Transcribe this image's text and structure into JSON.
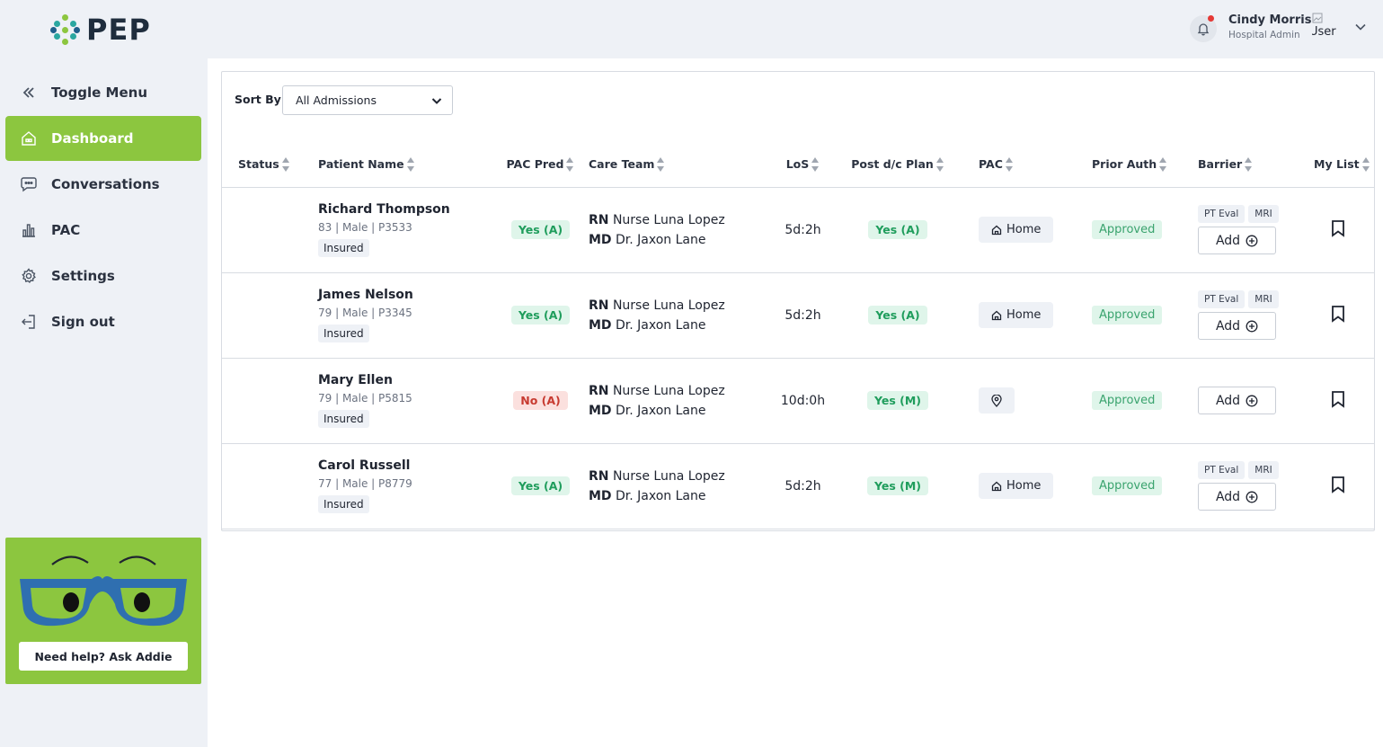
{
  "app": {
    "logo_text": "PEP"
  },
  "sidebar": {
    "items": [
      {
        "label": "Toggle Menu",
        "icon": "chevrons-left-icon"
      },
      {
        "label": "Dashboard",
        "icon": "home-icon",
        "active": true
      },
      {
        "label": "Conversations",
        "icon": "chat-icon"
      },
      {
        "label": "PAC",
        "icon": "bar-chart-icon"
      },
      {
        "label": "Settings",
        "icon": "gear-icon"
      },
      {
        "label": "Sign out",
        "icon": "sign-out-icon"
      }
    ],
    "help_button": "Need help? Ask Addie"
  },
  "header": {
    "user_name": "Cindy Morris",
    "user_role": "Hospital Admin",
    "avatar_alt": "User"
  },
  "toolbar": {
    "sort_label": "Sort By",
    "sort_value": "All Admissions"
  },
  "table": {
    "columns": [
      "Status",
      "Patient Name",
      "PAC Pred",
      "Care Team",
      "LoS",
      "Post d/c Plan",
      "PAC",
      "Prior Auth",
      "Barrier",
      "My List"
    ],
    "rows": [
      {
        "name": "Richard Thompson",
        "meta": "83 | Male | P3533",
        "insurance": "Insured",
        "pac_pred": "Yes (A)",
        "rn_label": "RN",
        "rn": "Nurse Luna Lopez",
        "md_label": "MD",
        "md": "Dr. Jaxon Lane",
        "los": "5d:2h",
        "post_dc": "Yes (A)",
        "pac": "Home",
        "prior_auth": "Approved",
        "barriers": [
          "PT Eval",
          "MRI"
        ],
        "add_label": "Add"
      },
      {
        "name": "James Nelson",
        "meta": "79 | Male | P3345",
        "insurance": "Insured",
        "pac_pred": "Yes (A)",
        "rn_label": "RN",
        "rn": "Nurse Luna Lopez",
        "md_label": "MD",
        "md": "Dr. Jaxon Lane",
        "los": "5d:2h",
        "post_dc": "Yes (A)",
        "pac": "Home",
        "prior_auth": "Approved",
        "barriers": [
          "PT Eval",
          "MRI"
        ],
        "add_label": "Add"
      },
      {
        "name": "Mary Ellen",
        "meta": "79 | Male | P5815",
        "insurance": "Insured",
        "pac_pred": "No (A)",
        "rn_label": "RN",
        "rn": "Nurse Luna Lopez",
        "md_label": "MD",
        "md": "Dr. Jaxon Lane",
        "los": "10d:0h",
        "post_dc": "Yes (M)",
        "pac": "",
        "prior_auth": "Approved",
        "barriers": [],
        "add_label": "Add"
      },
      {
        "name": "Carol Russell",
        "meta": "77 | Male | P8779",
        "insurance": "Insured",
        "pac_pred": "Yes (A)",
        "rn_label": "RN",
        "rn": "Nurse Luna Lopez",
        "md_label": "MD",
        "md": "Dr. Jaxon Lane",
        "los": "5d:2h",
        "post_dc": "Yes (M)",
        "pac": "Home",
        "prior_auth": "Approved",
        "barriers": [
          "PT Eval",
          "MRI"
        ],
        "add_label": "Add"
      }
    ]
  },
  "colors": {
    "accent_green": "#8cc63f",
    "pill_yes_bg": "#dff5ea",
    "pill_yes_text": "#1f9d5c",
    "pill_no_bg": "#fbe0de",
    "pill_no_text": "#c73a30",
    "glasses_blue": "#2f6fb0",
    "notification_dot": "#e53935"
  }
}
